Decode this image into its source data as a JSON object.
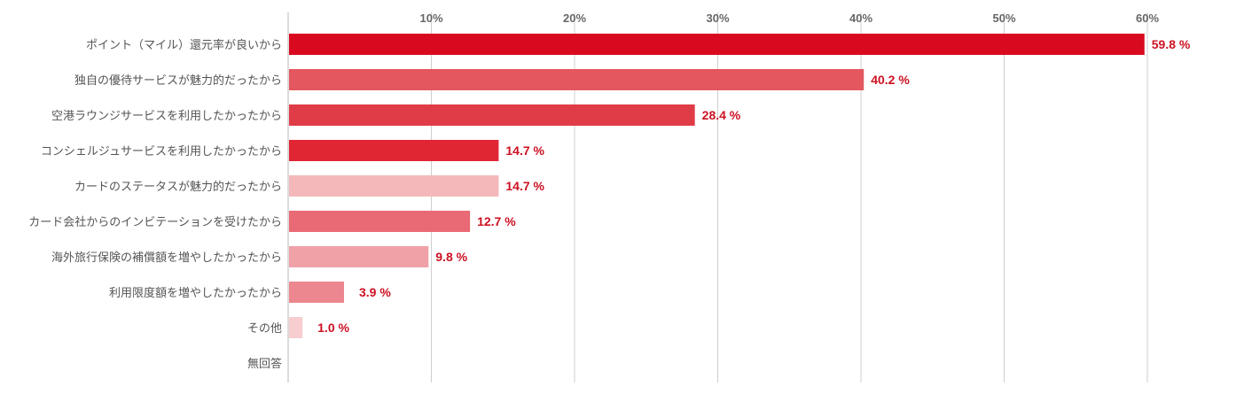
{
  "chart_data": {
    "type": "bar",
    "orientation": "horizontal",
    "title": "",
    "xlabel": "",
    "ylabel": "",
    "xlim": [
      0,
      60
    ],
    "x_ticks": [
      10,
      20,
      30,
      40,
      50,
      60
    ],
    "tick_format": "{v}%",
    "value_format": "{v} %",
    "grid": true,
    "legend": "none",
    "categories": [
      "ポイント（マイル）還元率が良いから",
      "独自の優待サービスが魅力的だったから",
      "空港ラウンジサービスを利用したかったから",
      "コンシェルジュサービスを利用したかったから",
      "カードのステータスが魅力的だったから",
      "カード会社からのインビテーションを受けたから",
      "海外旅行保険の補償額を増やしたかったから",
      "利用限度額を増やしたかったから",
      "その他",
      "無回答"
    ],
    "values": [
      59.8,
      40.2,
      28.4,
      14.7,
      14.7,
      12.7,
      9.8,
      3.9,
      1.0,
      null
    ],
    "colors": [
      "#d90a1f",
      "#e4575f",
      "#e03c47",
      "#e02533",
      "#f4b8bb",
      "#e96a74",
      "#f0a1a7",
      "#ec8790",
      "#f7cdd0",
      "#ffffff"
    ]
  }
}
